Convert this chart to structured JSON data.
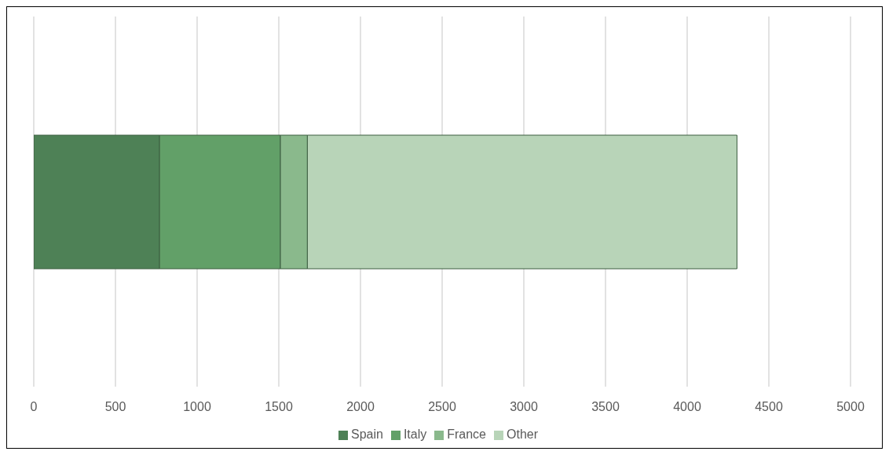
{
  "chart_data": {
    "type": "bar",
    "orientation": "horizontal",
    "stacked": true,
    "categories": [
      null
    ],
    "series": [
      {
        "name": "Spain",
        "color": "#4e8156",
        "values": [
          770
        ]
      },
      {
        "name": "Italy",
        "color": "#62a068",
        "values": [
          740
        ]
      },
      {
        "name": "France",
        "color": "#8ab98c",
        "values": [
          165
        ]
      },
      {
        "name": "Other",
        "color": "#b8d4b8",
        "values": [
          2630
        ]
      }
    ],
    "xlim": [
      0,
      5000
    ],
    "xticks": [
      0,
      500,
      1000,
      1500,
      2000,
      2500,
      3000,
      3500,
      4000,
      4500,
      5000
    ],
    "grid": "x",
    "legend": "bottom"
  }
}
